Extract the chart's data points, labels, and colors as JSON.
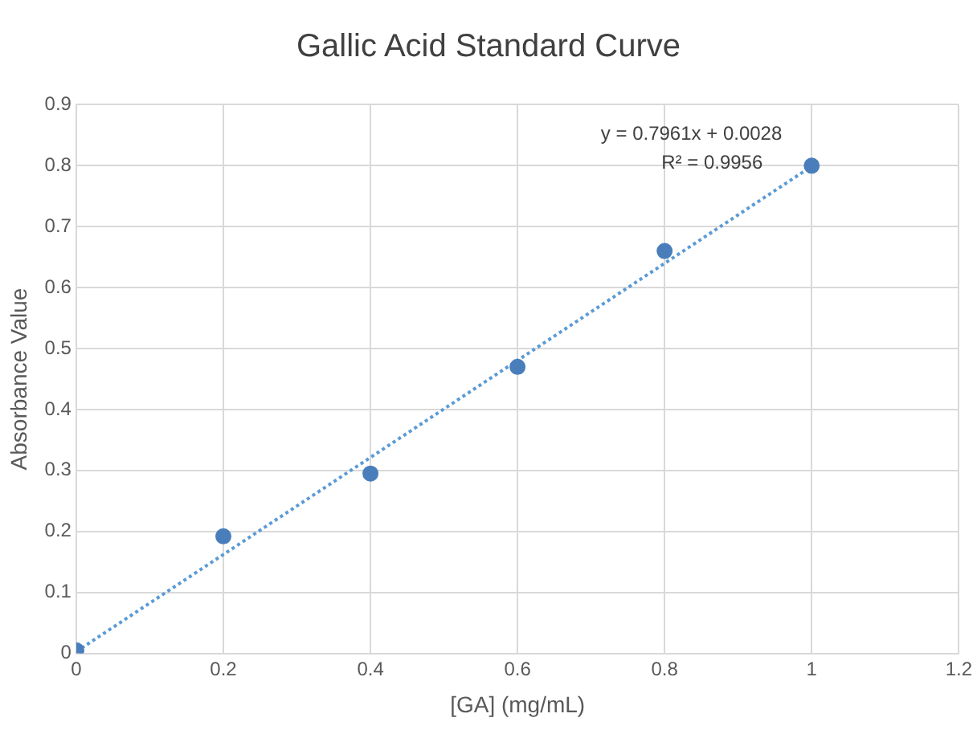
{
  "chart_data": {
    "type": "scatter",
    "title": "Gallic Acid Standard Curve",
    "xlabel": "[GA] (mg/mL)",
    "ylabel": "Absorbance Value",
    "xlim": [
      0,
      1.2
    ],
    "xticks": [
      0,
      0.2,
      0.4,
      0.6,
      0.8,
      1,
      1.2
    ],
    "ylim": [
      0,
      0.9
    ],
    "yticks": [
      0,
      0.1,
      0.2,
      0.3,
      0.4,
      0.5,
      0.6,
      0.7,
      0.8,
      0.9
    ],
    "grid": true,
    "legend": false,
    "marker": "circle",
    "annotations": [
      "y = 0.7961x + 0.0028",
      "R² = 0.9956"
    ],
    "series": [
      {
        "type": "scatter",
        "color": "#4a7ebb",
        "x": [
          0,
          0.2,
          0.4,
          0.6,
          0.8,
          1
        ],
        "values": [
          0.005,
          0.192,
          0.295,
          0.47,
          0.66,
          0.8
        ]
      },
      {
        "type": "line",
        "color": "#5b9bd5",
        "line_style": "dotted",
        "marker": "none",
        "x": [
          0,
          1
        ],
        "values": [
          0.003,
          0.799
        ]
      }
    ]
  }
}
